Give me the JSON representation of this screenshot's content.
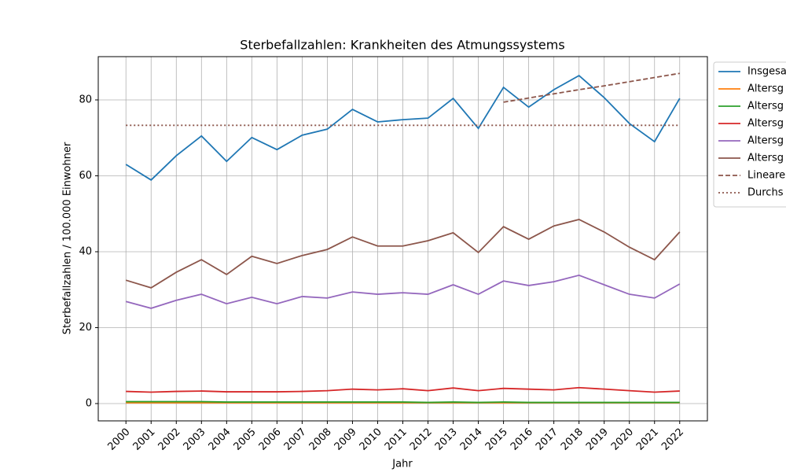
{
  "chart_data": {
    "type": "line",
    "title": "Sterbefallzahlen: Krankheiten des Atmungssystems",
    "xlabel": "Jahr",
    "ylabel": "Sterbefallzahlen / 100.000 Einwohner",
    "x": [
      2000,
      2001,
      2002,
      2003,
      2004,
      2005,
      2006,
      2007,
      2008,
      2009,
      2010,
      2011,
      2012,
      2013,
      2014,
      2015,
      2016,
      2017,
      2018,
      2019,
      2020,
      2021,
      2022
    ],
    "xlim": [
      1998.9,
      2023.1
    ],
    "xticks": [
      2000,
      2001,
      2002,
      2003,
      2004,
      2005,
      2006,
      2007,
      2008,
      2009,
      2010,
      2011,
      2012,
      2013,
      2014,
      2015,
      2016,
      2017,
      2018,
      2019,
      2020,
      2021,
      2022
    ],
    "ylim": [
      -4.56,
      91.4
    ],
    "yticks": [
      0,
      20,
      40,
      60,
      80
    ],
    "grid": true,
    "legend": "outside-upper-right",
    "series": [
      {
        "name": "Insgesa",
        "color": "#1f77b4",
        "dash": "solid",
        "values": [
          63.0,
          58.9,
          65.3,
          70.5,
          63.8,
          70.1,
          66.9,
          70.7,
          72.3,
          77.5,
          74.2,
          74.8,
          75.2,
          80.4,
          72.5,
          83.3,
          78.1,
          82.7,
          86.4,
          80.6,
          73.8,
          69.0,
          80.4
        ]
      },
      {
        "name": "Altersg",
        "color": "#ff7f0e",
        "dash": "solid",
        "values": [
          0.2,
          0.2,
          0.2,
          0.2,
          0.2,
          0.2,
          0.2,
          0.2,
          0.2,
          0.2,
          0.2,
          0.2,
          0.2,
          0.2,
          0.2,
          0.2,
          0.2,
          0.2,
          0.2,
          0.2,
          0.2,
          0.2,
          0.2
        ]
      },
      {
        "name": "Altersg",
        "color": "#2ca02c",
        "dash": "solid",
        "values": [
          0.5,
          0.5,
          0.5,
          0.5,
          0.4,
          0.4,
          0.4,
          0.4,
          0.4,
          0.4,
          0.4,
          0.4,
          0.3,
          0.4,
          0.3,
          0.4,
          0.3,
          0.3,
          0.3,
          0.3,
          0.3,
          0.3,
          0.3
        ]
      },
      {
        "name": "Altersg",
        "color": "#d62728",
        "dash": "solid",
        "values": [
          3.2,
          3.0,
          3.2,
          3.3,
          3.1,
          3.1,
          3.1,
          3.2,
          3.4,
          3.8,
          3.6,
          3.9,
          3.4,
          4.1,
          3.4,
          4.0,
          3.8,
          3.6,
          4.2,
          3.8,
          3.4,
          3.0,
          3.3
        ]
      },
      {
        "name": "Altersg",
        "color": "#9467bd",
        "dash": "solid",
        "values": [
          26.9,
          25.1,
          27.2,
          28.8,
          26.3,
          28.0,
          26.3,
          28.2,
          27.8,
          29.4,
          28.8,
          29.2,
          28.8,
          31.3,
          28.8,
          32.3,
          31.1,
          32.1,
          33.8,
          31.3,
          28.8,
          27.8,
          31.5
        ]
      },
      {
        "name": "Altersg",
        "color": "#8c564b",
        "dash": "solid",
        "values": [
          32.5,
          30.5,
          34.6,
          37.9,
          34.0,
          38.8,
          36.9,
          39.0,
          40.6,
          43.9,
          41.5,
          41.5,
          42.9,
          45.0,
          39.8,
          46.6,
          43.3,
          46.8,
          48.5,
          45.2,
          41.2,
          37.9,
          45.2
        ]
      },
      {
        "name": "Lineare",
        "color": "#8c564b",
        "dash": "dashed",
        "values": [
          null,
          null,
          null,
          null,
          null,
          null,
          null,
          null,
          null,
          null,
          null,
          null,
          null,
          null,
          null,
          79.4,
          80.5,
          81.6,
          82.7,
          83.7,
          84.8,
          85.9,
          87.0
        ]
      },
      {
        "name": "Durchs",
        "color": "#8c564b",
        "dash": "dotted",
        "values": [
          73.3,
          73.3,
          73.3,
          73.3,
          73.3,
          73.3,
          73.3,
          73.3,
          73.3,
          73.3,
          73.3,
          73.3,
          73.3,
          73.3,
          73.3,
          73.3,
          73.3,
          73.3,
          73.3,
          73.3,
          73.3,
          73.3,
          73.3
        ]
      }
    ]
  }
}
